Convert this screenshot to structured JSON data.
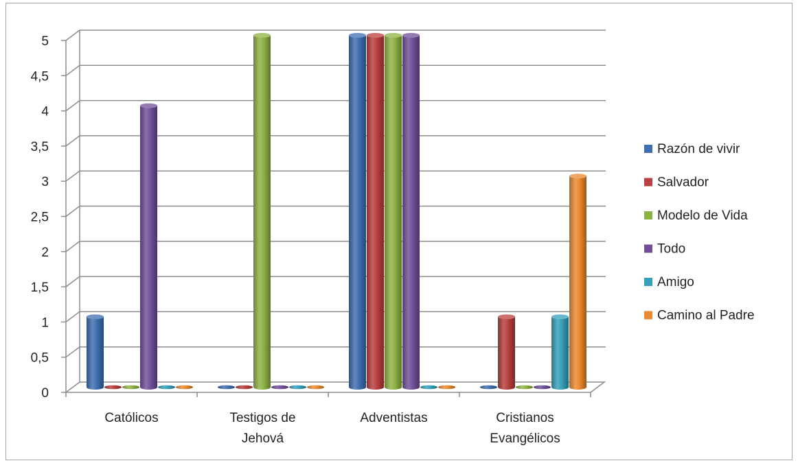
{
  "chart_data": {
    "type": "bar",
    "title": "",
    "xlabel": "",
    "ylabel": "",
    "ylim": [
      0,
      5
    ],
    "yticks": [
      "0",
      "0,5",
      "1",
      "1,5",
      "2",
      "2,5",
      "3",
      "3,5",
      "4",
      "4,5",
      "5"
    ],
    "grid": true,
    "legend_position": "right",
    "categories": [
      [
        "Católicos"
      ],
      [
        "Testigos de",
        "Jehová"
      ],
      [
        "Adventistas"
      ],
      [
        "Cristianos",
        "Evangélicos"
      ]
    ],
    "series": [
      {
        "name": "Razón de vivir",
        "color": "#3f6fb0",
        "values": [
          1,
          0,
          5,
          0
        ]
      },
      {
        "name": "Salvador",
        "color": "#b8403e",
        "values": [
          0,
          0,
          5,
          1
        ]
      },
      {
        "name": "Modelo de Vida",
        "color": "#8fb244",
        "values": [
          0,
          5,
          5,
          0
        ]
      },
      {
        "name": "Todo",
        "color": "#70509a",
        "values": [
          4,
          0,
          5,
          0
        ]
      },
      {
        "name": "Amigo",
        "color": "#36a0b8",
        "values": [
          0,
          0,
          0,
          1
        ]
      },
      {
        "name": "Camino al Padre",
        "color": "#ea8a2f",
        "values": [
          0,
          0,
          0,
          3
        ]
      }
    ]
  }
}
